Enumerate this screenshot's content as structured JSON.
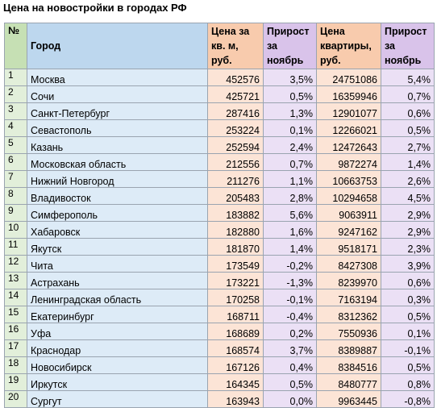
{
  "title": "Цена на новостройки в городах РФ",
  "headers": {
    "num": "№",
    "city": "Город",
    "price_sqm": "Цена за кв. м, руб.",
    "growth_sqm": "Прирост за ноябрь",
    "price_flat": "Цена квартиры, руб.",
    "growth_flat": "Прирост за ноябрь"
  },
  "rows": [
    {
      "n": "1",
      "city": "Москва",
      "p": "452576",
      "g": "3,5%",
      "pf": "24751086",
      "gf": "5,4%"
    },
    {
      "n": "2",
      "city": "Сочи",
      "p": "425721",
      "g": "0,5%",
      "pf": "16359946",
      "gf": "0,7%"
    },
    {
      "n": "3",
      "city": "Санкт-Петербург",
      "p": "287416",
      "g": "1,3%",
      "pf": "12901077",
      "gf": "0,6%"
    },
    {
      "n": "4",
      "city": "Севастополь",
      "p": "253224",
      "g": "0,1%",
      "pf": "12266021",
      "gf": "0,5%"
    },
    {
      "n": "5",
      "city": "Казань",
      "p": "252594",
      "g": "2,4%",
      "pf": "12472643",
      "gf": "2,7%"
    },
    {
      "n": "6",
      "city": "Московская область",
      "p": "212556",
      "g": "0,7%",
      "pf": "9872274",
      "gf": "1,4%"
    },
    {
      "n": "7",
      "city": "Нижний Новгород",
      "p": "211276",
      "g": "1,1%",
      "pf": "10663753",
      "gf": "2,6%"
    },
    {
      "n": "8",
      "city": "Владивосток",
      "p": "205483",
      "g": "2,8%",
      "pf": "10294658",
      "gf": "4,5%"
    },
    {
      "n": "9",
      "city": "Симферополь",
      "p": "183882",
      "g": "5,6%",
      "pf": "9063911",
      "gf": "2,9%"
    },
    {
      "n": "10",
      "city": "Хабаровск",
      "p": "182880",
      "g": "1,6%",
      "pf": "9247162",
      "gf": "2,9%"
    },
    {
      "n": "11",
      "city": "Якутск",
      "p": "181870",
      "g": "1,4%",
      "pf": "9518171",
      "gf": "2,3%"
    },
    {
      "n": "12",
      "city": "Чита",
      "p": "173549",
      "g": "-0,2%",
      "pf": "8427308",
      "gf": "3,9%"
    },
    {
      "n": "13",
      "city": "Астрахань",
      "p": "173221",
      "g": "-1,3%",
      "pf": "8239970",
      "gf": "0,6%"
    },
    {
      "n": "14",
      "city": "Ленинградская область",
      "p": "170258",
      "g": "-0,1%",
      "pf": "7163194",
      "gf": "0,3%"
    },
    {
      "n": "15",
      "city": "Екатеринбург",
      "p": "168711",
      "g": "-0,4%",
      "pf": "8312362",
      "gf": "0,5%"
    },
    {
      "n": "16",
      "city": "Уфа",
      "p": "168689",
      "g": "0,2%",
      "pf": "7550936",
      "gf": "0,1%"
    },
    {
      "n": "17",
      "city": "Краснодар",
      "p": "168574",
      "g": "3,7%",
      "pf": "8389887",
      "gf": "-0,1%"
    },
    {
      "n": "18",
      "city": "Новосибирск",
      "p": "167126",
      "g": "0,4%",
      "pf": "8384516",
      "gf": "0,5%"
    },
    {
      "n": "19",
      "city": "Иркутск",
      "p": "164345",
      "g": "0,5%",
      "pf": "8480777",
      "gf": "0,8%"
    },
    {
      "n": "20",
      "city": "Сургут",
      "p": "163943",
      "g": "0,0%",
      "pf": "9963445",
      "gf": "-0,8%"
    }
  ]
}
